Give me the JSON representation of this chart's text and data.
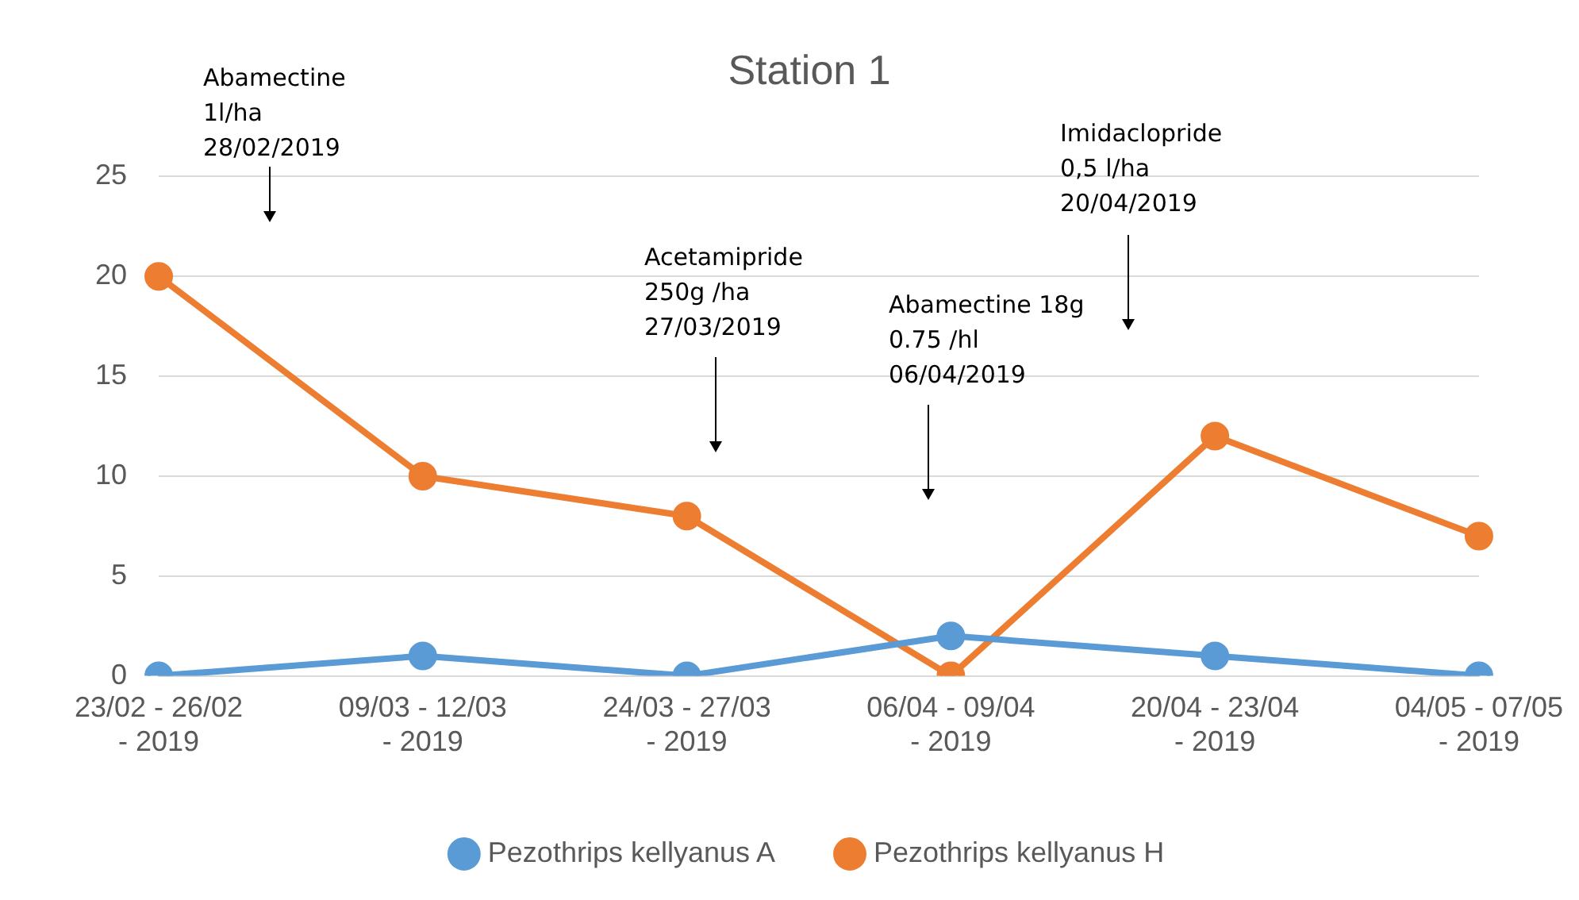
{
  "chart_data": {
    "type": "line",
    "title": "Station 1",
    "categories": [
      "23/02 - 26/02 - 2019",
      "09/03 - 12/03 - 2019",
      "24/03 - 27/03 - 2019",
      "06/04 - 09/04 - 2019",
      "20/04 - 23/04 - 2019",
      "04/05 - 07/05 - 2019"
    ],
    "series": [
      {
        "name": "Pezothrips kellyanus A",
        "color": "#5b9bd5",
        "values": [
          0,
          1,
          0,
          2,
          1,
          0
        ]
      },
      {
        "name": "Pezothrips kellyanus H",
        "color": "#ed7d31",
        "values": [
          20,
          10,
          8,
          0,
          12,
          7
        ]
      }
    ],
    "ylim": [
      0,
      25
    ],
    "yticks": [
      0,
      5,
      10,
      15,
      20,
      25
    ],
    "grid": "y",
    "legend": "bottom",
    "marker": "circle",
    "line_style": "solid",
    "annotations": [
      "Abamectine\n1l/ha\n28/02/2019",
      "Acetamipride\n250g /ha\n27/03/2019",
      "Abamectine 18g\n0.75 /hl\n06/04/2019",
      "Imidaclopride\n0,5 l/ha\n20/04/2019"
    ]
  }
}
